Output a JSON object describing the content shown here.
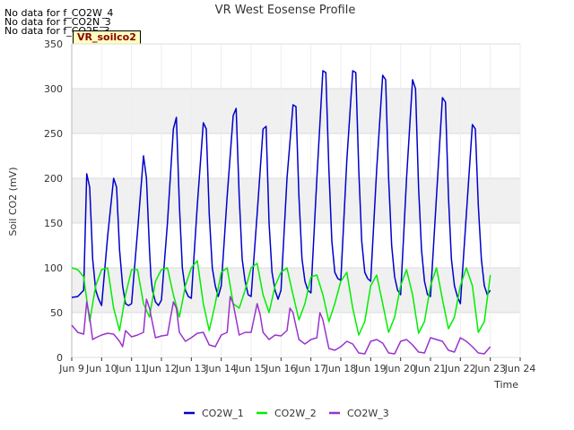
{
  "notes": [
    "No data for f_CO2W_4",
    "No data for f_CO2N_3",
    "No data for f_CO2E_3"
  ],
  "site_tag": "VR_soilco2",
  "chart_data": {
    "type": "line",
    "title": "VR West Eosense Profile",
    "xlabel": "Time",
    "ylabel": "Soil CO2 (mV)",
    "xlim": [
      9,
      24
    ],
    "ylim": [
      0,
      350
    ],
    "x_ticks": [
      9,
      10,
      11,
      12,
      13,
      14,
      15,
      16,
      17,
      18,
      19,
      20,
      21,
      22,
      23,
      24
    ],
    "x_tick_labels": [
      "Jun 9",
      "Jun 10",
      "Jun 11",
      "Jun 12",
      "Jun 13",
      "Jun 14",
      "Jun 15",
      "Jun 16",
      "Jun 17",
      "Jun 18",
      "Jun 19",
      "Jun 20",
      "Jun 21",
      "Jun 22",
      "Jun 23",
      "Jun 24"
    ],
    "y_ticks": [
      0,
      50,
      100,
      150,
      200,
      250,
      300,
      350
    ],
    "grid": true,
    "legend": "bottom",
    "series": [
      {
        "name": "CO2W_1",
        "color": "#0000cc",
        "x": [
          9.0,
          9.2,
          9.4,
          9.5,
          9.6,
          9.65,
          9.7,
          9.8,
          9.9,
          10.0,
          10.2,
          10.4,
          10.5,
          10.6,
          10.7,
          10.8,
          10.9,
          11.0,
          11.2,
          11.4,
          11.5,
          11.6,
          11.65,
          11.7,
          11.8,
          11.9,
          12.0,
          12.2,
          12.4,
          12.5,
          12.6,
          12.7,
          12.8,
          12.9,
          13.0,
          13.2,
          13.4,
          13.5,
          13.6,
          13.7,
          13.8,
          13.9,
          14.0,
          14.2,
          14.4,
          14.5,
          14.6,
          14.7,
          14.8,
          14.9,
          15.0,
          15.2,
          15.4,
          15.5,
          15.6,
          15.7,
          15.8,
          15.9,
          16.0,
          16.2,
          16.4,
          16.5,
          16.6,
          16.7,
          16.8,
          16.9,
          17.0,
          17.2,
          17.4,
          17.5,
          17.6,
          17.7,
          17.8,
          17.9,
          18.0,
          18.2,
          18.4,
          18.5,
          18.6,
          18.7,
          18.8,
          18.9,
          19.0,
          19.2,
          19.4,
          19.5,
          19.6,
          19.7,
          19.8,
          19.9,
          20.0,
          20.2,
          20.4,
          20.5,
          20.6,
          20.7,
          20.8,
          20.9,
          21.0,
          21.2,
          21.4,
          21.5,
          21.6,
          21.7,
          21.8,
          21.9,
          22.0,
          22.2,
          22.4,
          22.5,
          22.6,
          22.7,
          22.8,
          22.9,
          23.0
        ],
        "y": [
          67,
          68,
          75,
          205,
          190,
          150,
          110,
          75,
          65,
          58,
          135,
          200,
          190,
          120,
          80,
          60,
          58,
          60,
          140,
          225,
          200,
          120,
          90,
          75,
          62,
          58,
          64,
          150,
          255,
          268,
          170,
          100,
          75,
          68,
          66,
          170,
          262,
          255,
          160,
          100,
          80,
          68,
          80,
          180,
          270,
          278,
          180,
          110,
          85,
          70,
          68,
          160,
          255,
          258,
          150,
          95,
          75,
          65,
          75,
          200,
          282,
          280,
          180,
          110,
          85,
          75,
          72,
          200,
          320,
          318,
          210,
          130,
          95,
          88,
          86,
          220,
          320,
          318,
          210,
          130,
          95,
          88,
          85,
          210,
          315,
          310,
          200,
          125,
          90,
          75,
          70,
          200,
          310,
          300,
          190,
          120,
          85,
          70,
          68,
          180,
          290,
          285,
          180,
          110,
          80,
          68,
          60,
          160,
          260,
          255,
          170,
          110,
          80,
          70,
          75
        ]
      },
      {
        "name": "CO2W_2",
        "color": "#00ee00",
        "x": [
          9.0,
          9.2,
          9.4,
          9.6,
          9.8,
          10.0,
          10.2,
          10.4,
          10.6,
          10.8,
          11.0,
          11.2,
          11.4,
          11.6,
          11.8,
          12.0,
          12.2,
          12.4,
          12.6,
          12.8,
          13.0,
          13.2,
          13.4,
          13.6,
          13.8,
          14.0,
          14.2,
          14.4,
          14.6,
          14.8,
          15.0,
          15.2,
          15.4,
          15.6,
          15.8,
          16.0,
          16.2,
          16.4,
          16.6,
          16.8,
          17.0,
          17.2,
          17.4,
          17.6,
          17.8,
          18.0,
          18.2,
          18.4,
          18.6,
          18.8,
          19.0,
          19.2,
          19.4,
          19.6,
          19.8,
          20.0,
          20.2,
          20.4,
          20.6,
          20.8,
          21.0,
          21.2,
          21.4,
          21.6,
          21.8,
          22.0,
          22.2,
          22.4,
          22.6,
          22.8,
          23.0
        ],
        "y": [
          100,
          98,
          90,
          40,
          80,
          98,
          100,
          55,
          30,
          70,
          98,
          98,
          60,
          45,
          85,
          98,
          100,
          70,
          45,
          80,
          100,
          108,
          60,
          30,
          60,
          95,
          100,
          60,
          55,
          75,
          100,
          105,
          70,
          50,
          80,
          95,
          100,
          70,
          42,
          60,
          90,
          92,
          70,
          40,
          60,
          85,
          95,
          55,
          25,
          40,
          80,
          92,
          60,
          28,
          45,
          80,
          98,
          70,
          27,
          40,
          80,
          100,
          65,
          32,
          45,
          80,
          100,
          80,
          28,
          40,
          92
        ]
      },
      {
        "name": "CO2W_3",
        "color": "#9933cc",
        "x": [
          9.0,
          9.2,
          9.4,
          9.5,
          9.6,
          9.7,
          9.8,
          10.0,
          10.2,
          10.4,
          10.6,
          10.7,
          10.8,
          11.0,
          11.2,
          11.4,
          11.5,
          11.6,
          11.8,
          12.0,
          12.2,
          12.4,
          12.5,
          12.6,
          12.8,
          13.0,
          13.2,
          13.4,
          13.6,
          13.8,
          14.0,
          14.2,
          14.3,
          14.4,
          14.6,
          14.8,
          15.0,
          15.2,
          15.3,
          15.4,
          15.6,
          15.8,
          16.0,
          16.2,
          16.3,
          16.4,
          16.6,
          16.8,
          17.0,
          17.2,
          17.3,
          17.4,
          17.6,
          17.8,
          18.0,
          18.2,
          18.4,
          18.6,
          18.8,
          19.0,
          19.2,
          19.4,
          19.6,
          19.8,
          20.0,
          20.2,
          20.4,
          20.6,
          20.8,
          21.0,
          21.2,
          21.4,
          21.6,
          21.8,
          22.0,
          22.2,
          22.4,
          22.6,
          22.8,
          23.0
        ],
        "y": [
          36,
          28,
          26,
          62,
          45,
          20,
          22,
          25,
          27,
          26,
          18,
          12,
          30,
          23,
          25,
          28,
          65,
          55,
          22,
          24,
          25,
          62,
          55,
          28,
          18,
          22,
          27,
          28,
          14,
          12,
          25,
          28,
          68,
          60,
          25,
          28,
          28,
          60,
          48,
          28,
          20,
          25,
          24,
          30,
          55,
          50,
          20,
          15,
          20,
          22,
          50,
          42,
          10,
          8,
          12,
          18,
          15,
          5,
          4,
          18,
          20,
          16,
          5,
          4,
          18,
          20,
          14,
          6,
          5,
          22,
          20,
          18,
          8,
          6,
          22,
          18,
          12,
          5,
          4,
          12
        ]
      }
    ]
  }
}
